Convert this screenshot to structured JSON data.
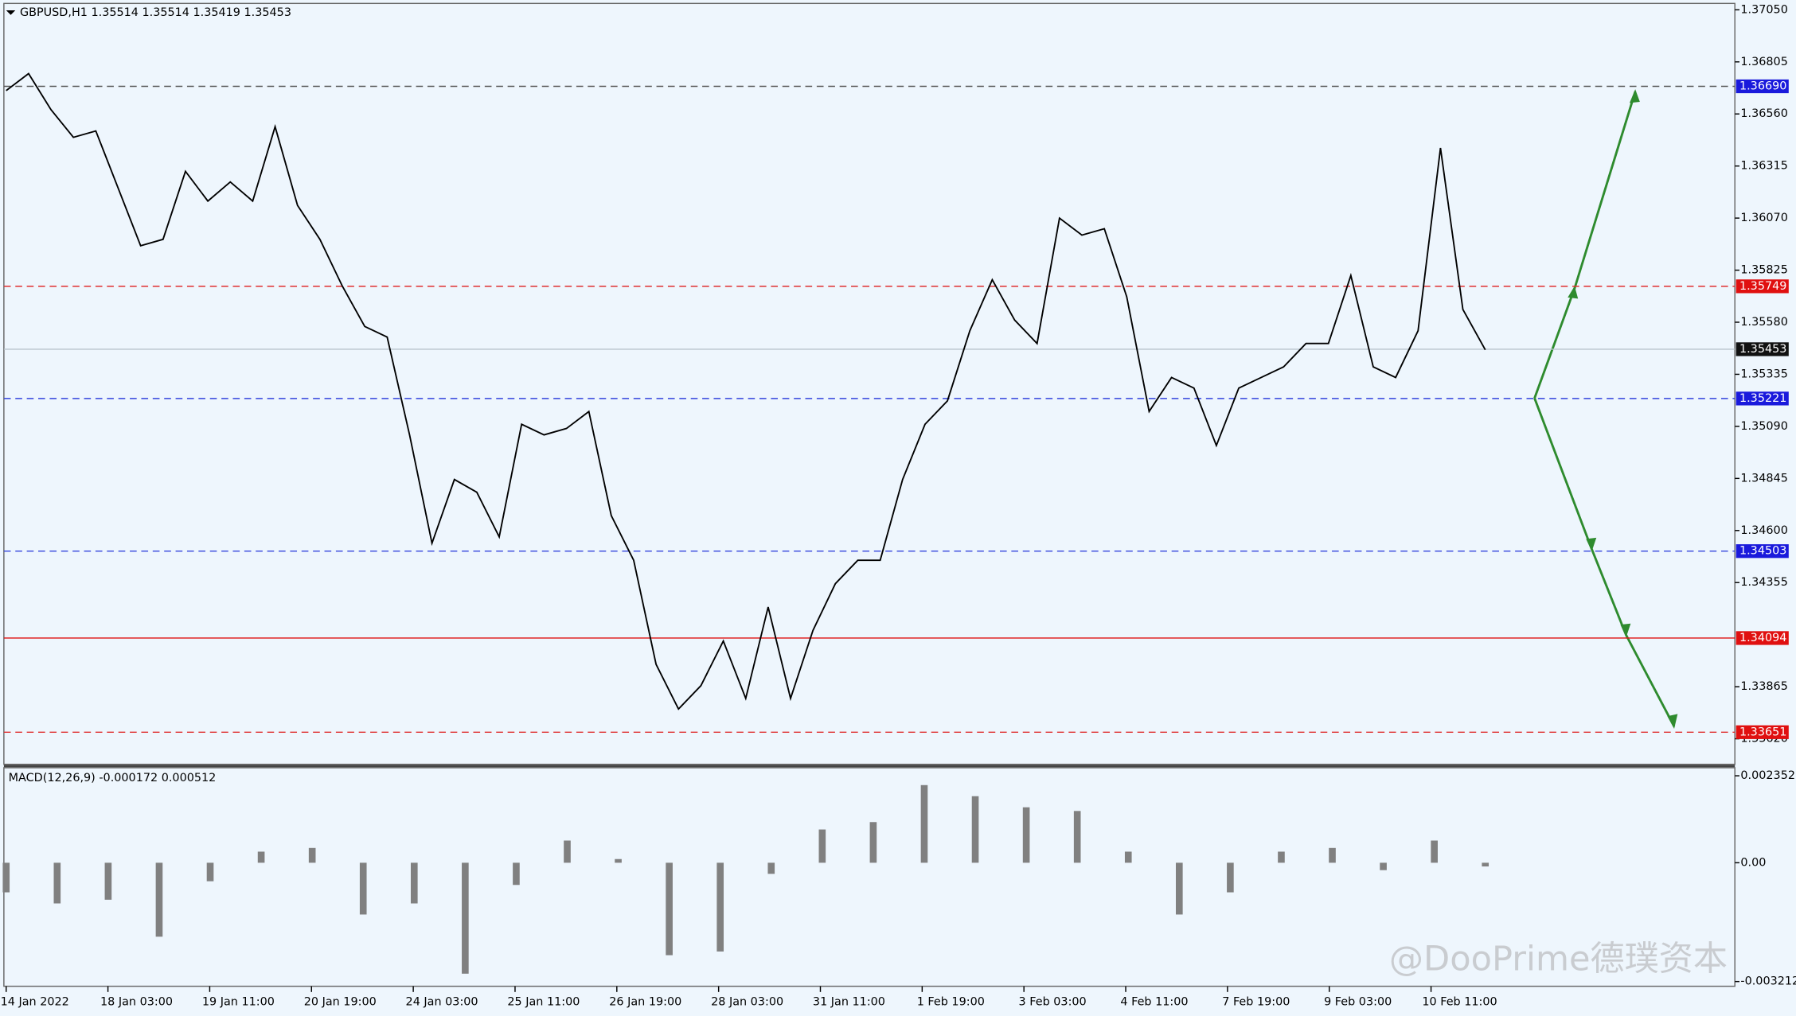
{
  "chart_data": [
    {
      "type": "line",
      "title": "GBPUSD,H1  1.35514 1.35514 1.35419 1.35453",
      "color": "#000000",
      "values": [
        1.3667,
        1.3675,
        1.3658,
        1.3645,
        1.3648,
        1.3621,
        1.3594,
        1.3597,
        1.3629,
        1.3615,
        1.3624,
        1.3615,
        1.365,
        1.3613,
        1.3597,
        1.3575,
        1.3556,
        1.3551,
        1.3505,
        1.3454,
        1.3484,
        1.3478,
        1.3457,
        1.351,
        1.3505,
        1.3508,
        1.3516,
        1.3467,
        1.3446,
        1.3397,
        1.3376,
        1.3387,
        1.3408,
        1.3381,
        1.3424,
        1.3381,
        1.3413,
        1.3435,
        1.3446,
        1.3446,
        1.3484,
        1.351,
        1.3521,
        1.3554,
        1.3578,
        1.3559,
        1.3548,
        1.3607,
        1.3599,
        1.3602,
        1.357,
        1.3516,
        1.3532,
        1.3527,
        1.35,
        1.3527,
        1.3532,
        1.3537,
        1.3548,
        1.3548,
        1.358,
        1.3537,
        1.3532,
        1.3554,
        1.364,
        1.3564,
        1.3545
      ],
      "ylim": [
        1.335,
        1.3708
      ],
      "yticks": [
        {
          "value": 1.3705,
          "label": "1.37050"
        },
        {
          "value": 1.36805,
          "label": "1.36805"
        },
        {
          "value": 1.3656,
          "label": "1.36560"
        },
        {
          "value": 1.36315,
          "label": "1.36315"
        },
        {
          "value": 1.3607,
          "label": "1.36070"
        },
        {
          "value": 1.35825,
          "label": "1.35825"
        },
        {
          "value": 1.3558,
          "label": "1.35580"
        },
        {
          "value": 1.35335,
          "label": "1.35335"
        },
        {
          "value": 1.3509,
          "label": "1.35090"
        },
        {
          "value": 1.34845,
          "label": "1.34845"
        },
        {
          "value": 1.346,
          "label": "1.34600"
        },
        {
          "value": 1.34355,
          "label": "1.34355"
        },
        {
          "value": 1.33865,
          "label": "1.33865"
        },
        {
          "value": 1.3362,
          "label": "1.33620"
        }
      ],
      "levels": [
        {
          "value": 1.3669,
          "label": "1.36690",
          "color": "#555555",
          "label_color": "#1a1adc",
          "style": "dashed"
        },
        {
          "value": 1.35749,
          "label": "1.35749",
          "color": "#e03030",
          "label_color": "#e01010",
          "style": "dashed"
        },
        {
          "value": 1.35453,
          "label": "1.35453",
          "color": "#b8c4cc",
          "label_color": "#111111",
          "style": "solid"
        },
        {
          "value": 1.35221,
          "label": "1.35221",
          "color": "#3344dd",
          "label_color": "#1a1adc",
          "style": "dashed"
        },
        {
          "value": 1.34503,
          "label": "1.34503",
          "color": "#3344dd",
          "label_color": "#1a1adc",
          "style": "dashed"
        },
        {
          "value": 1.34094,
          "label": "1.34094",
          "color": "#e01010",
          "label_color": "#e01010",
          "style": "solid"
        },
        {
          "value": 1.33651,
          "label": "1.33651",
          "color": "#e03030",
          "label_color": "#e01010",
          "style": "dashed"
        }
      ],
      "time_labels": [
        "14 Jan 2022",
        "18 Jan 03:00",
        "19 Jan 11:00",
        "20 Jan 19:00",
        "24 Jan 03:00",
        "25 Jan 11:00",
        "26 Jan 19:00",
        "28 Jan 03:00",
        "31 Jan 11:00",
        "1 Feb 19:00",
        "3 Feb 03:00",
        "4 Feb 11:00",
        "7 Feb 19:00",
        "9 Feb 03:00",
        "10 Feb 11:00"
      ]
    },
    {
      "type": "bar",
      "title": "MACD(12,26,9) -0.000172 0.000512",
      "color": "#808080",
      "values": [
        -0.0008,
        -0.0011,
        -0.001,
        -0.002,
        -0.0005,
        0.0003,
        0.0004,
        -0.0014,
        -0.0011,
        -0.003,
        -0.0006,
        0.0006,
        0.0001,
        -0.0025,
        -0.0024,
        -0.0003,
        0.0009,
        0.0011,
        0.0021,
        0.0018,
        0.0015,
        0.0014,
        0.0003,
        -0.0014,
        -0.0008,
        0.0003,
        0.0004,
        -0.0002,
        0.0006,
        -0.0001
      ],
      "ylim": [
        -0.00334,
        0.00257
      ],
      "yticks": [
        0.002352,
        {
          "value": 0,
          "label": "0.00"
        },
        -0.003212
      ]
    }
  ],
  "watermark": "@DooPrime德璞资本"
}
